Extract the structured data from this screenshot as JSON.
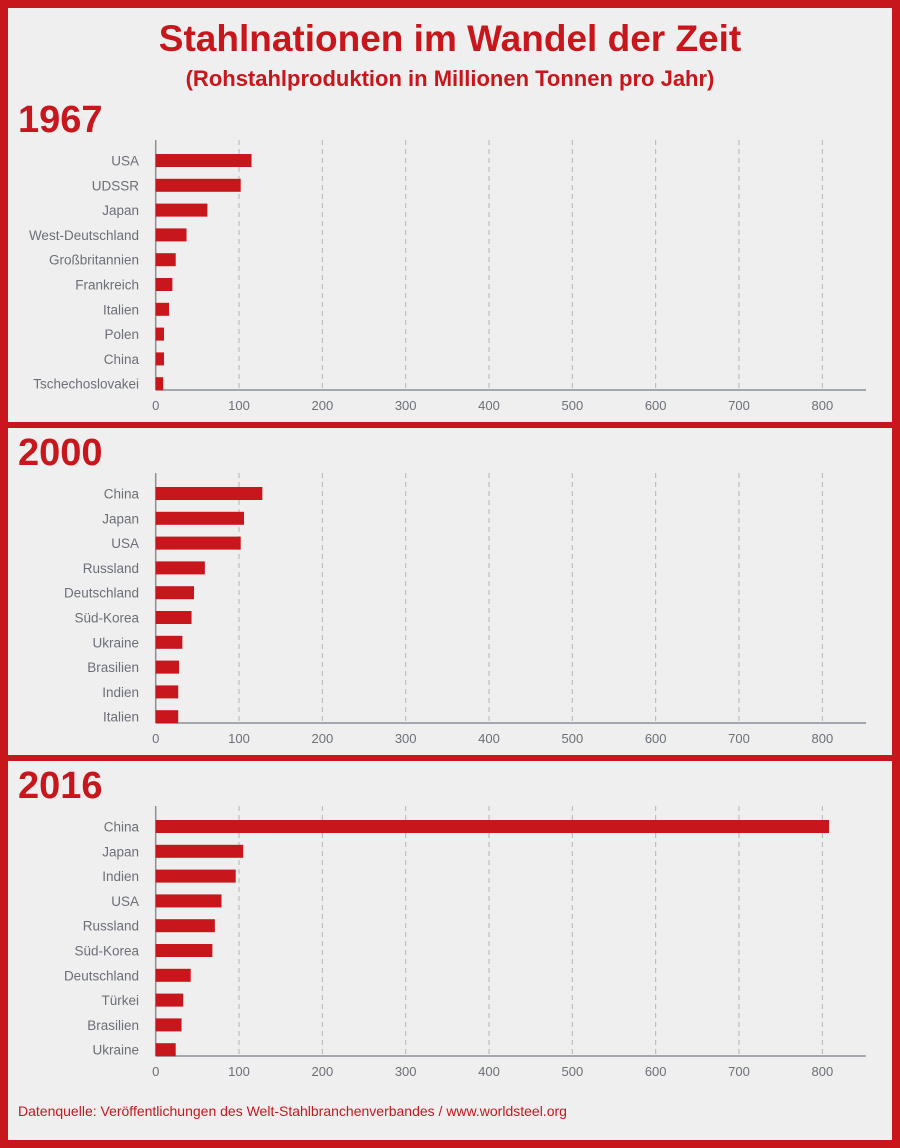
{
  "title": "Stahlnationen im Wandel der Zeit",
  "subtitle": "(Rohstahlproduktion in Millionen Tonnen pro Jahr)",
  "footer": "Datenquelle: Veröffentlichungen des Welt-Stahlbranchenverbandes / www.worldsteel.org",
  "colors": {
    "accent": "#c8161d",
    "background": "#efefef",
    "label": "#6b6f78"
  },
  "chart_data": [
    {
      "type": "bar",
      "title": "1967",
      "orientation": "horizontal",
      "categories": [
        "USA",
        "UDSSR",
        "Japan",
        "West-Deutschland",
        "Großbritannien",
        "Frankreich",
        "Italien",
        "Polen",
        "China",
        "Tschechoslovakei"
      ],
      "values": [
        115,
        102,
        62,
        37,
        24,
        20,
        16,
        10,
        10,
        9
      ],
      "xlim": [
        0,
        850
      ],
      "ticks": [
        "0",
        "100",
        "200",
        "300",
        "400",
        "500",
        "600",
        "700",
        "800"
      ],
      "grid": true
    },
    {
      "type": "bar",
      "title": "2000",
      "orientation": "horizontal",
      "categories": [
        "China",
        "Japan",
        "USA",
        "Russland",
        "Deutschland",
        "Süd-Korea",
        "Ukraine",
        "Brasilien",
        "Indien",
        "Italien"
      ],
      "values": [
        128,
        106,
        102,
        59,
        46,
        43,
        32,
        28,
        27,
        27
      ],
      "xlim": [
        0,
        850
      ],
      "ticks": [
        "0",
        "100",
        "200",
        "300",
        "400",
        "500",
        "600",
        "700",
        "800"
      ],
      "grid": true
    },
    {
      "type": "bar",
      "title": "2016",
      "orientation": "horizontal",
      "categories": [
        "China",
        "Japan",
        "Indien",
        "USA",
        "Russland",
        "Süd-Korea",
        "Deutschland",
        "Türkei",
        "Brasilien",
        "Ukraine"
      ],
      "values": [
        808,
        105,
        96,
        79,
        71,
        68,
        42,
        33,
        31,
        24
      ],
      "xlim": [
        0,
        850
      ],
      "ticks": [
        "0",
        "100",
        "200",
        "300",
        "400",
        "500",
        "600",
        "700",
        "800"
      ],
      "grid": true
    }
  ]
}
